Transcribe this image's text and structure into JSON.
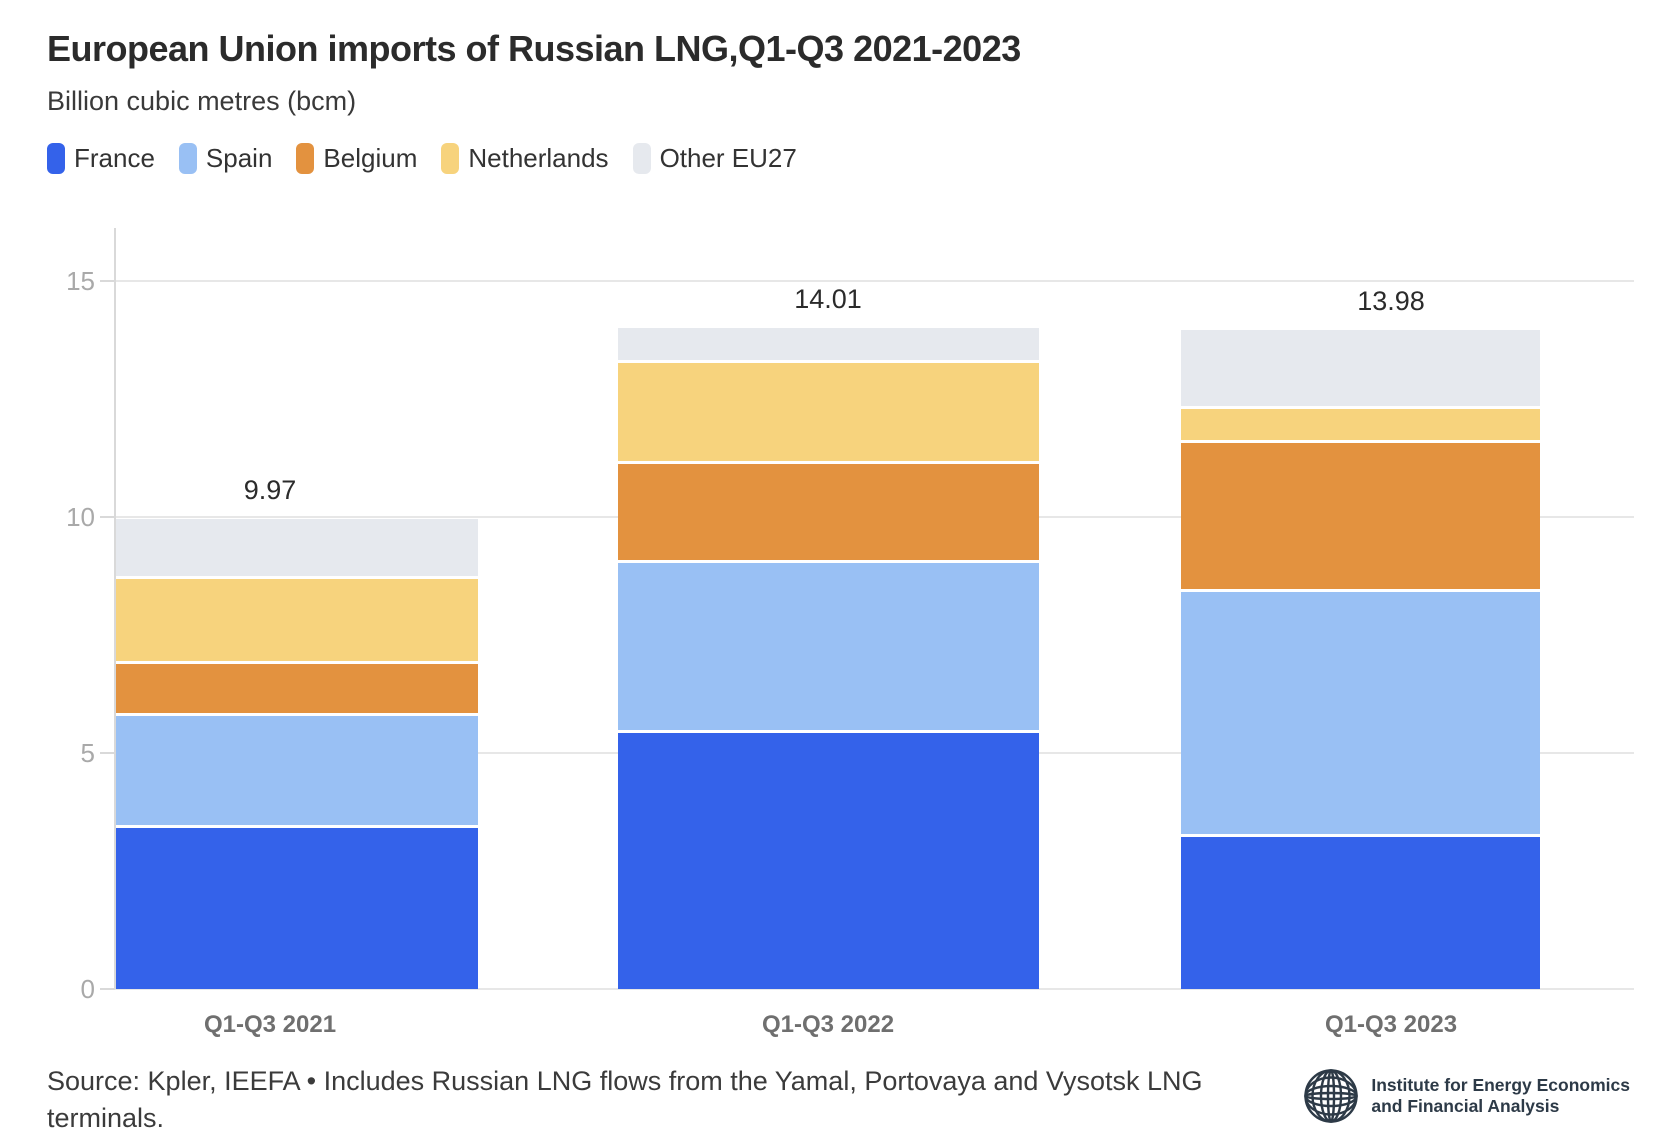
{
  "header": {
    "title": "European Union imports of Russian LNG,Q1-Q3 2021-2023",
    "subtitle": "Billion cubic metres (bcm)"
  },
  "legend": {
    "items": [
      {
        "label": "France",
        "color": "#3462ea"
      },
      {
        "label": "Spain",
        "color": "#99c0f4"
      },
      {
        "label": "Belgium",
        "color": "#e3923f"
      },
      {
        "label": "Netherlands",
        "color": "#f7d37d"
      },
      {
        "label": "Other EU27",
        "color": "#e6e9ee"
      }
    ]
  },
  "chart_data": {
    "type": "bar",
    "stacked": true,
    "title": "European Union imports of Russian LNG,Q1-Q3 2021-2023",
    "unit_label": "Billion cubic metres (bcm)",
    "categories": [
      "Q1-Q3 2021",
      "Q1-Q3 2022",
      "Q1-Q3 2023"
    ],
    "series": [
      {
        "name": "France",
        "color": "#3462ea",
        "values": [
          3.41,
          5.42,
          3.22
        ]
      },
      {
        "name": "Spain",
        "color": "#99c0f4",
        "values": [
          2.38,
          3.61,
          5.2
        ]
      },
      {
        "name": "Belgium",
        "color": "#e3923f",
        "values": [
          1.11,
          2.11,
          3.16
        ]
      },
      {
        "name": "Netherlands",
        "color": "#f7d37d",
        "values": [
          1.79,
          2.14,
          0.72
        ]
      },
      {
        "name": "Other EU27",
        "color": "#e6e9ee",
        "values": [
          1.28,
          0.73,
          1.68
        ]
      }
    ],
    "totals": [
      9.97,
      14.01,
      13.98
    ],
    "total_labels": [
      "9.97",
      "14.01",
      "13.98"
    ],
    "yticks": [
      0,
      5,
      10,
      15
    ],
    "ylim": [
      0,
      15.8
    ],
    "grid": true,
    "legend_position": "top",
    "grid_color": "#e7e7e7",
    "axis_label_color": "#a9a9a9"
  },
  "footer": {
    "source_line1": "Source: Kpler, IEEFA • Includes Russian LNG flows from the Yamal, Portovaya and Vysotsk LNG",
    "source_line2": "terminals.",
    "logo": {
      "icon": "globe-icon",
      "line1": "Institute for Energy Economics",
      "line2": "and Financial Analysis"
    }
  }
}
